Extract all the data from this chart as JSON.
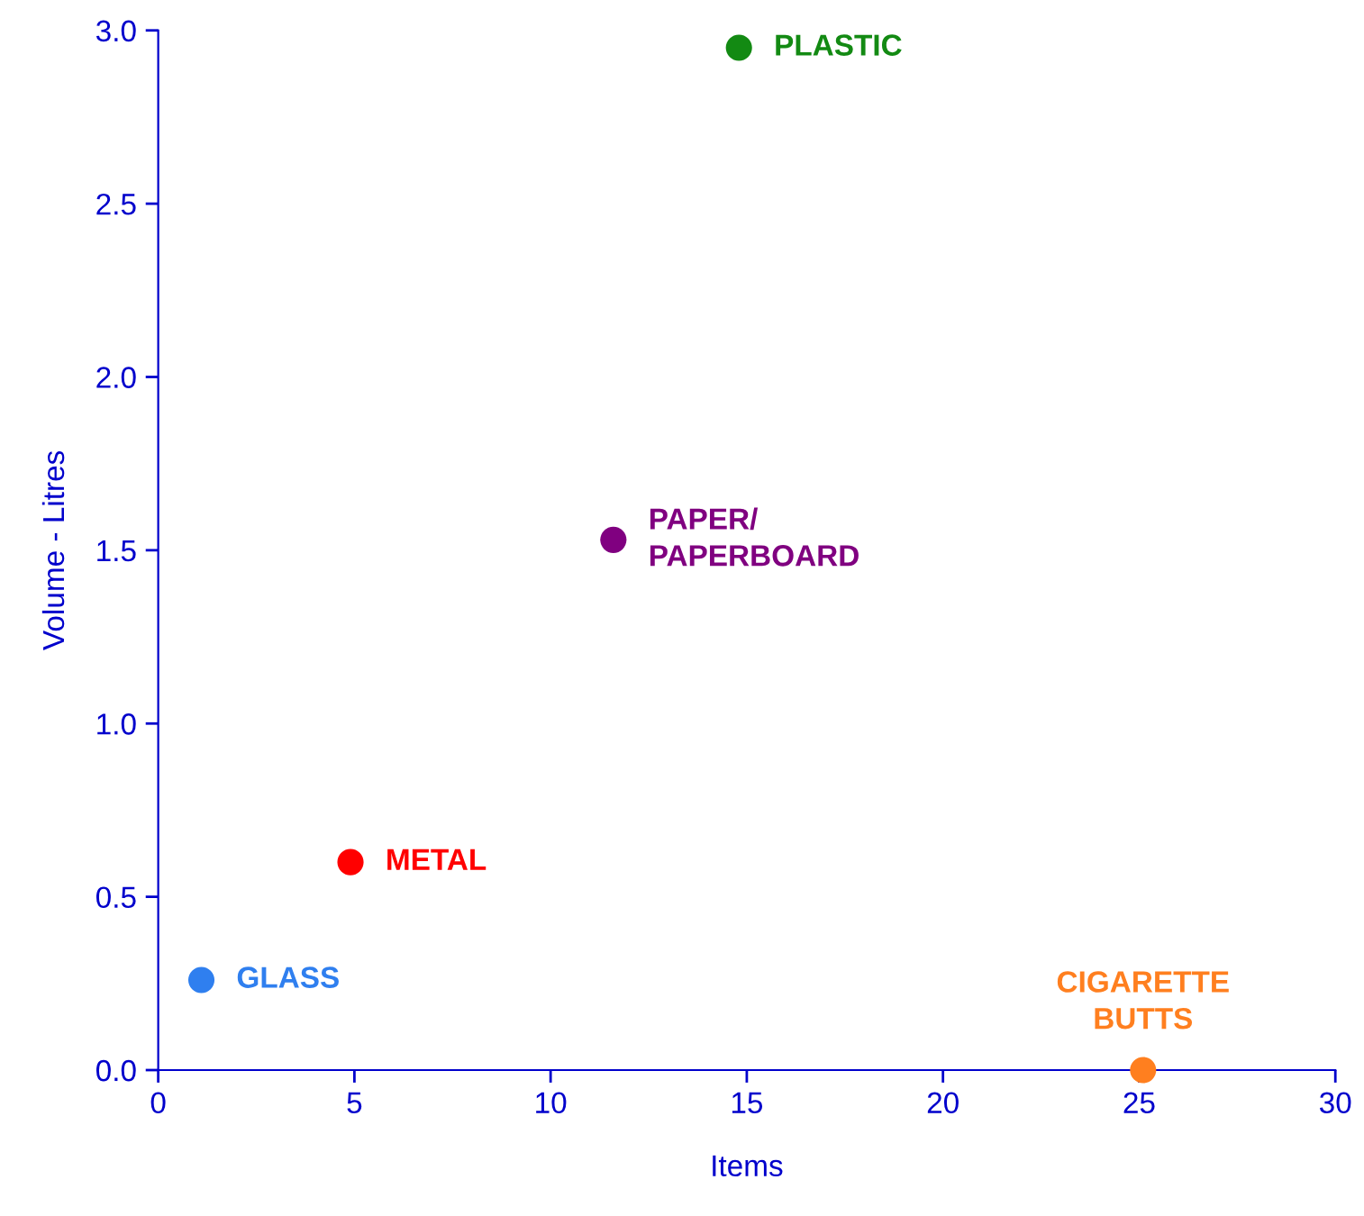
{
  "chart_data": {
    "type": "scatter",
    "xlabel": "Items",
    "ylabel": "Volume - Litres",
    "xlim": [
      0,
      30
    ],
    "xticks": [
      0,
      5,
      10,
      15,
      20,
      25,
      30
    ],
    "ylim": [
      0,
      3.0
    ],
    "yticks": [
      {
        "value": 0,
        "label": "0.0"
      },
      {
        "value": 0.5,
        "label": "0.5"
      },
      {
        "value": 1.0,
        "label": "1.0"
      },
      {
        "value": 1.5,
        "label": "1.5"
      },
      {
        "value": 2.0,
        "label": "2.0"
      },
      {
        "value": 2.5,
        "label": "2.5"
      },
      {
        "value": 3.0,
        "label": "3.0"
      }
    ],
    "marker": "circle",
    "grid": false,
    "legend": false,
    "series": [
      {
        "name": "PLASTIC",
        "color": "#138a13",
        "x": [
          14.8
        ],
        "values": [
          2.95
        ]
      },
      {
        "name": "PAPER/\nPAPERBOARD",
        "color": "#800080",
        "x": [
          11.6
        ],
        "values": [
          1.53
        ]
      },
      {
        "name": "METAL",
        "color": "#ff0000",
        "x": [
          4.9
        ],
        "values": [
          0.6
        ]
      },
      {
        "name": "GLASS",
        "color": "#2f7fef",
        "x": [
          1.1
        ],
        "values": [
          0.26
        ]
      },
      {
        "name": "CIGARETTE\nBUTTS",
        "color": "#ff7f1f",
        "x": [
          25.1
        ],
        "values": [
          0.0
        ]
      }
    ]
  }
}
